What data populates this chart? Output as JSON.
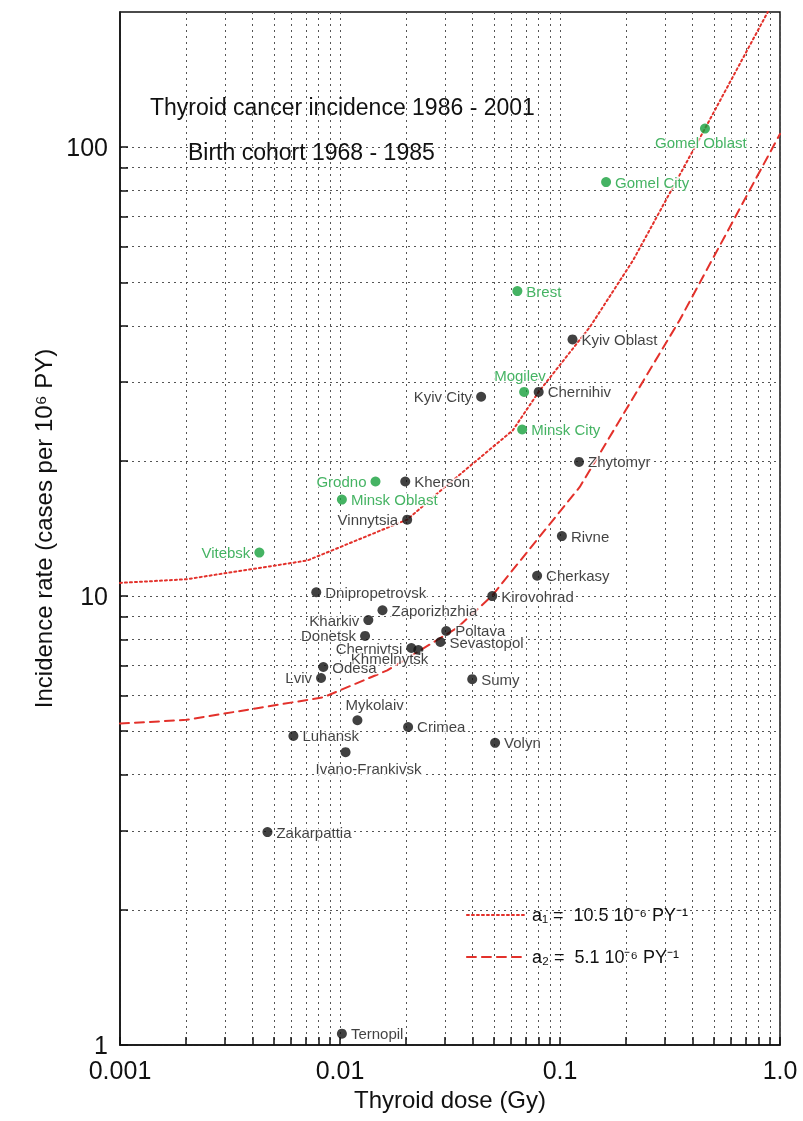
{
  "chart_data": {
    "type": "scatter",
    "title": "Thyroid cancer incidence 1986 - 2001",
    "subtitle": "Birth cohort 1968 - 1985",
    "xlabel": "Thyroid dose (Gy)",
    "ylabel": "Incidence rate (cases per 10⁶ PY)",
    "log": "xy",
    "grid": true,
    "legend": "bottom right",
    "xlim": [
      0.001,
      1.0
    ],
    "ylim": [
      1,
      200
    ],
    "xticks": [
      0.001,
      {
        "value": 0.002,
        "label": null
      },
      {
        "value": 0.003,
        "label": null
      },
      {
        "value": 0.004,
        "label": null
      },
      {
        "value": 0.005,
        "label": null
      },
      {
        "value": 0.006,
        "label": null
      },
      {
        "value": 0.007,
        "label": null
      },
      {
        "value": 0.008,
        "label": null
      },
      {
        "value": 0.009,
        "label": null
      },
      0.01,
      {
        "value": 0.02,
        "label": null
      },
      {
        "value": 0.03,
        "label": null
      },
      {
        "value": 0.04,
        "label": null
      },
      {
        "value": 0.05,
        "label": null
      },
      {
        "value": 0.06,
        "label": null
      },
      {
        "value": 0.07,
        "label": null
      },
      {
        "value": 0.08,
        "label": null
      },
      {
        "value": 0.09,
        "label": null
      },
      0.1,
      {
        "value": 0.2,
        "label": null
      },
      {
        "value": 0.3,
        "label": null
      },
      {
        "value": 0.4,
        "label": null
      },
      {
        "value": 0.5,
        "label": null
      },
      {
        "value": 0.6,
        "label": null
      },
      {
        "value": 0.7,
        "label": null
      },
      {
        "value": 0.8,
        "label": null
      },
      {
        "value": 0.9,
        "label": null
      },
      {
        "value": 1.0,
        "label": "1.0"
      }
    ],
    "yticks": [
      1,
      {
        "value": 2,
        "label": null
      },
      {
        "value": 3,
        "label": null
      },
      {
        "value": 4,
        "label": null
      },
      {
        "value": 5,
        "label": null
      },
      {
        "value": 6,
        "label": null
      },
      {
        "value": 7,
        "label": null
      },
      {
        "value": 8,
        "label": null
      },
      {
        "value": 9,
        "label": null
      },
      10,
      {
        "value": 20,
        "label": null
      },
      {
        "value": 30,
        "label": null
      },
      {
        "value": 40,
        "label": null
      },
      {
        "value": 50,
        "label": null
      },
      {
        "value": 60,
        "label": null
      },
      {
        "value": 70,
        "label": null
      },
      {
        "value": 80,
        "label": null
      },
      {
        "value": 90,
        "label": null
      },
      100
    ],
    "series": [
      {
        "type": "scatter",
        "color": "#17a03c",
        "marker": "circle",
        "x": [
          0.456,
          0.162,
          0.064,
          0.0687,
          0.0673,
          0.0145,
          0.0102,
          0.0043
        ],
        "values": [
          110,
          83.6,
          47.8,
          28.5,
          23.5,
          18.0,
          16.4,
          12.5
        ],
        "value_labels": [
          "Gomel Oblast",
          "Gomel City",
          "Brest",
          "Mogilev",
          "Minsk City",
          "Grodno",
          "Minsk Oblast",
          "Vitebsk"
        ]
      },
      {
        "type": "scatter",
        "color": "#111111",
        "marker": "circle",
        "x": [
          0.114,
          0.08,
          0.0438,
          0.122,
          0.0198,
          0.0202,
          0.102,
          0.0787,
          0.0078,
          0.0492,
          0.0156,
          0.01345,
          0.0304,
          0.013,
          0.0286,
          0.0211,
          0.0227,
          0.0084,
          0.0082,
          0.0399,
          0.012,
          0.0204,
          0.00614,
          0.0507,
          0.0106,
          0.00468,
          0.0102
        ],
        "values": [
          37.3,
          28.5,
          27.8,
          19.9,
          18.0,
          14.8,
          13.6,
          11.1,
          10.2,
          10.0,
          9.3,
          8.84,
          8.36,
          8.15,
          7.9,
          7.66,
          7.58,
          6.95,
          6.57,
          6.53,
          5.29,
          5.11,
          4.88,
          4.71,
          4.49,
          2.98,
          1.06
        ],
        "value_labels": [
          "Kyiv Oblast",
          "Chernihiv",
          "Kyiv City",
          "Zhytomyr",
          "Kherson",
          "Vinnytsia",
          "Rivne",
          "Cherkasy",
          "Dnipropetrovsk",
          "Kirovohrad",
          "Zaporizhzhia",
          "Kharkiv",
          "Poltava",
          "Donetsk",
          "Sevastopol",
          "Chernivtsi",
          "Khmelnytsk",
          "Odesa",
          "Lviv",
          "Sumy",
          "Mykolaiv",
          "Crimea",
          "Luhansk",
          "Volyn",
          "Ivano-Frankivsk",
          "Zakarpattia",
          "Ternopil"
        ]
      },
      {
        "type": "line",
        "name": "a₁ =  10.5 10⁻⁶ PY⁻¹",
        "color": "#e3312b",
        "line_style": "dotted",
        "marker": "none",
        "x": [
          0.001,
          0.002,
          0.0071,
          0.0202,
          0.03,
          0.061,
          0.08,
          0.137,
          0.215,
          0.456,
          0.88
        ],
        "values": [
          10.7,
          10.9,
          12.0,
          14.8,
          17.5,
          23.4,
          28.5,
          39.8,
          56,
          110,
          200
        ]
      },
      {
        "type": "line",
        "name": "a₂ =  5.1 10⁻⁶ PY⁻¹",
        "color": "#e3312b",
        "line_style": "dashed",
        "marker": "none",
        "x": [
          0.001,
          0.002,
          0.0084,
          0.0164,
          0.0341,
          0.049,
          0.0706,
          0.123,
          0.35,
          1.0
        ],
        "values": [
          5.2,
          5.3,
          5.95,
          6.83,
          8.5,
          10.0,
          12.5,
          17.5,
          41.2,
          107
        ]
      }
    ]
  }
}
